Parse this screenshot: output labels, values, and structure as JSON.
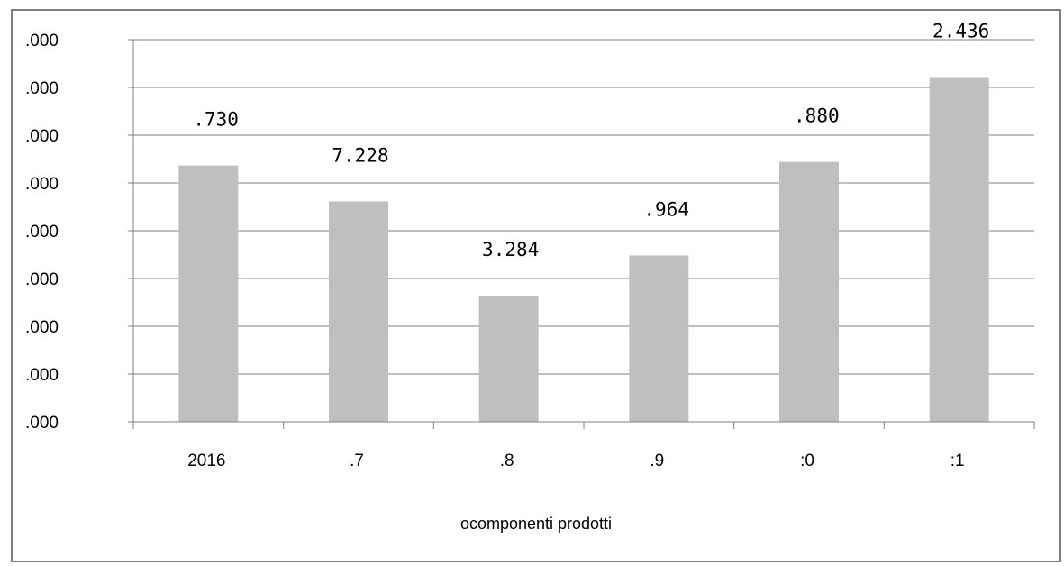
{
  "chart_data": {
    "type": "bar",
    "categories": [
      "2016",
      ".7",
      ".8",
      ".9",
      ":0",
      ":1"
    ],
    "values": [
      8730,
      7228,
      3284,
      4964,
      8880,
      12436
    ],
    "data_labels": [
      " .730",
      "7.228",
      "3.284",
      " .964",
      " .880",
      "2.436"
    ],
    "y_tick_labels": [
      ".000",
      ".000",
      ".000",
      ".000",
      ".000",
      ".000",
      ".000",
      ".000",
      ".000"
    ],
    "ylim": [
      -2000,
      14000
    ],
    "xlabel": "ocomponenti prodotti",
    "ylabel": "",
    "title": "",
    "bar_color": "#bfbfbf",
    "grid": true,
    "legend": "none"
  }
}
